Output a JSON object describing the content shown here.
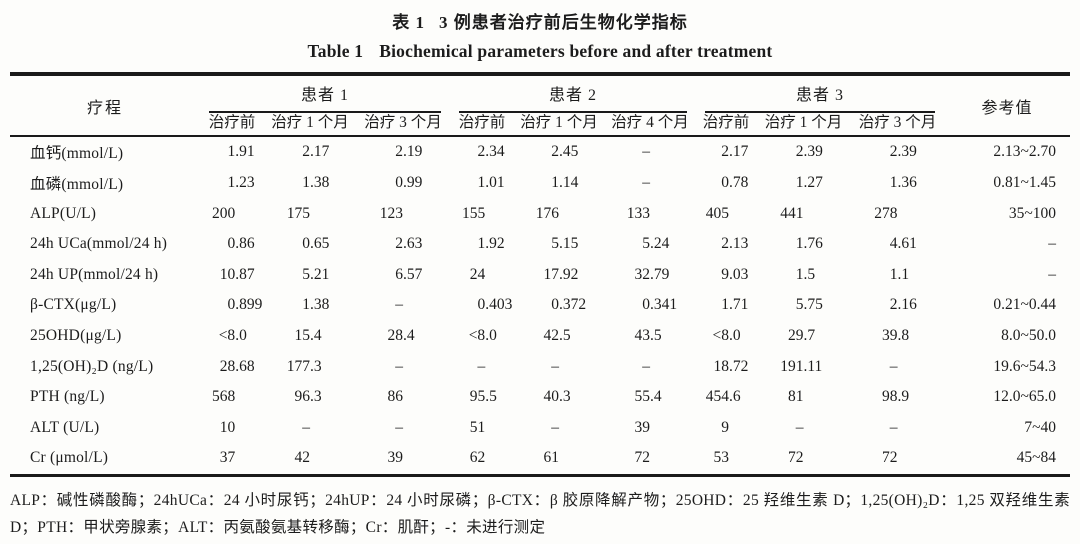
{
  "colors": {
    "background": "#fdfdfb",
    "text": "#1c1c1c",
    "rule": "#1a1a1a"
  },
  "title": {
    "zh_label": "表 1",
    "zh_text": "3 例患者治疗前后生物化学指标",
    "en_label": "Table 1",
    "en_text": "Biochemical parameters before and after treatment"
  },
  "table": {
    "corner_header": "疗程",
    "reference_header": "参考值",
    "groups": [
      {
        "label": "患者 1",
        "columns": [
          "治疗前",
          "治疗 1 个月",
          "治疗 3 个月"
        ]
      },
      {
        "label": "患者 2",
        "columns": [
          "治疗前",
          "治疗 1 个月",
          "治疗 4 个月"
        ]
      },
      {
        "label": "患者 3",
        "columns": [
          "治疗前",
          "治疗 1 个月",
          "治疗 3 个月"
        ]
      }
    ],
    "rows": [
      {
        "label": "血钙(mmol/L)",
        "values": [
          "1.91",
          "2.17",
          "2.19",
          "2.34",
          "2.45",
          "–",
          "2.17",
          "2.39",
          "2.39"
        ],
        "reference": "2.13~2.70"
      },
      {
        "label": "血磷(mmol/L)",
        "values": [
          "1.23",
          "1.38",
          "0.99",
          "1.01",
          "1.14",
          "–",
          "0.78",
          "1.27",
          "1.36"
        ],
        "reference": "0.81~1.45"
      },
      {
        "label": "ALP(U/L)",
        "values": [
          "200",
          "175",
          "123",
          "155",
          "176",
          "133",
          "405",
          "441",
          "278"
        ],
        "reference": "35~100"
      },
      {
        "label": "24h UCa(mmol/24 h)",
        "values": [
          "0.86",
          "0.65",
          "2.63",
          "1.92",
          "5.15",
          "5.24",
          "2.13",
          "1.76",
          "4.61"
        ],
        "reference": "–"
      },
      {
        "label": "24h UP(mmol/24 h)",
        "values": [
          "10.87",
          "5.21",
          "6.57",
          "24",
          "17.92",
          "32.79",
          "9.03",
          "1.5",
          "1.1"
        ],
        "reference": "–"
      },
      {
        "label": "β-CTX(μg/L)",
        "values": [
          "0.899",
          "1.38",
          "–",
          "0.403",
          "0.372",
          "0.341",
          "1.71",
          "5.75",
          "2.16"
        ],
        "reference": "0.21~0.44"
      },
      {
        "label": "25OHD(μg/L)",
        "values": [
          "<8.0",
          "15.4",
          "28.4",
          "<8.0",
          "42.5",
          "43.5",
          "<8.0",
          "29.7",
          "39.8"
        ],
        "reference": "8.0~50.0"
      },
      {
        "label": "1,25(OH)₂D (ng/L)",
        "values": [
          "28.68",
          "177.3",
          "–",
          "–",
          "–",
          "–",
          "18.72",
          "191.11",
          "–"
        ],
        "reference": "19.6~54.3"
      },
      {
        "label": "PTH (ng/L)",
        "values": [
          "568",
          "96.3",
          "86",
          "95.5",
          "40.3",
          "55.4",
          "454.6",
          "81",
          "98.9"
        ],
        "reference": "12.0~65.0"
      },
      {
        "label": "ALT (U/L)",
        "values": [
          "10",
          "–",
          "–",
          "51",
          "–",
          "39",
          "9",
          "–",
          "–"
        ],
        "reference": "7~40"
      },
      {
        "label": "Cr (μmol/L)",
        "values": [
          "37",
          "42",
          "39",
          "62",
          "61",
          "72",
          "53",
          "72",
          "72"
        ],
        "reference": "45~84"
      }
    ]
  },
  "footnote": "ALP：碱性磷酸酶；24hUCa：24 小时尿钙；24hUP：24 小时尿磷；β-CTX：β 胶原降解产物；25OHD：25 羟维生素 D；1,25(OH)₂D：1,25 双羟维生素 D；PTH：甲状旁腺素；ALT：丙氨酸氨基转移酶；Cr：肌酐；-：未进行测定"
}
